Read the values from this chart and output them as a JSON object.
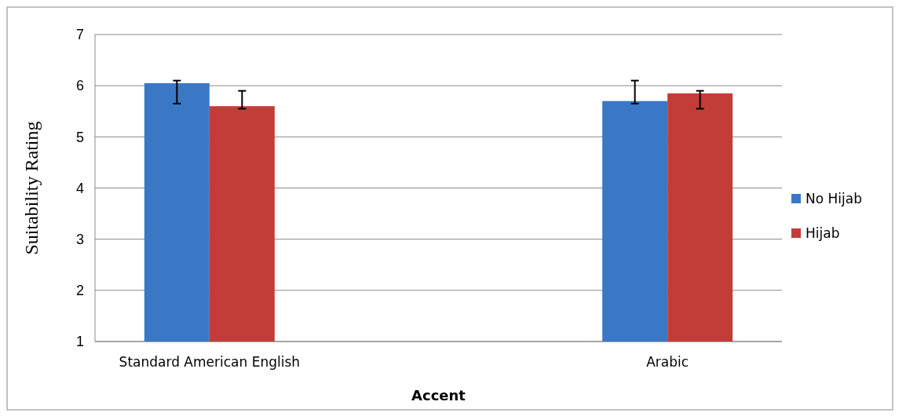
{
  "chart_data": {
    "type": "bar",
    "xlabel": "Accent",
    "ylabel": "Suitability Rating",
    "categories": [
      "Standard American English",
      "Arabic"
    ],
    "series": [
      {
        "name": "No Hijab",
        "color": "#3a78c6",
        "values": [
          6.05,
          5.7
        ],
        "errors": [
          [
            5.65,
            6.1
          ],
          [
            5.65,
            6.1
          ]
        ]
      },
      {
        "name": "Hijab",
        "color": "#c43c38",
        "values": [
          5.6,
          5.85
        ],
        "errors": [
          [
            5.55,
            5.9
          ],
          [
            5.55,
            5.9
          ]
        ]
      }
    ],
    "ylim": [
      1,
      7
    ],
    "yticks": [
      1,
      2,
      3,
      4,
      5,
      6,
      7
    ],
    "grid": "y",
    "legend": "right"
  }
}
